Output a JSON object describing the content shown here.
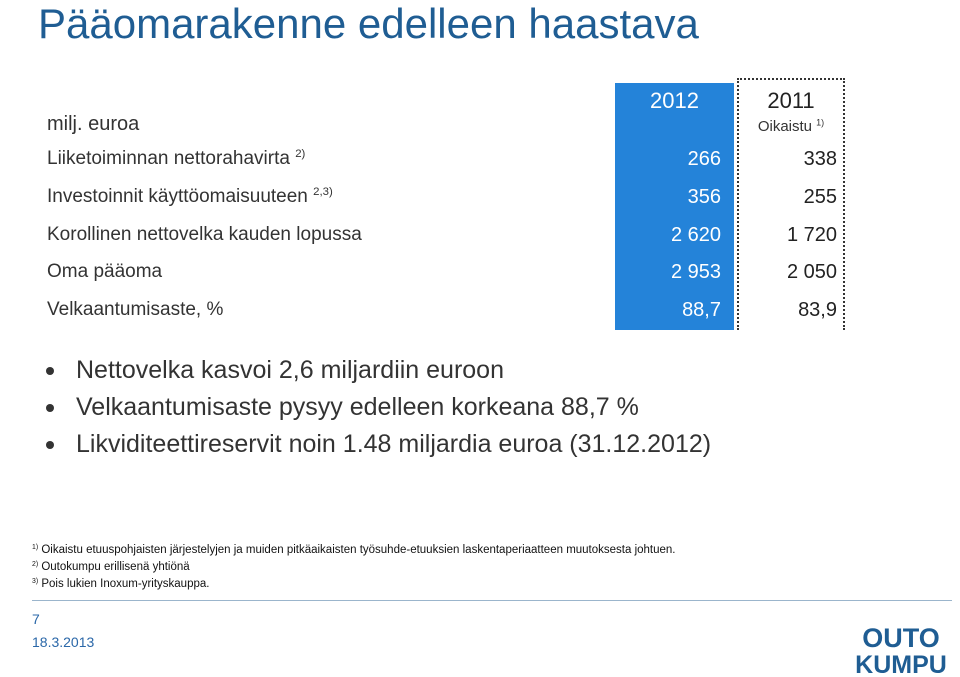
{
  "title": "Pääomarakenne edelleen haastava",
  "table": {
    "unit_label": "milj. euroa",
    "col_2012": "2012",
    "col_2011": "2011",
    "col_2011_note": "Oikaistu",
    "col_2011_note_sup": "1)",
    "rows": [
      {
        "label": "Liiketoiminnan nettorahavirta",
        "sup": "2)",
        "v2012": "266",
        "v2011": "338"
      },
      {
        "label": "Investoinnit käyttöomaisuuteen",
        "sup": "2,3)",
        "v2012": "356",
        "v2011": "255"
      },
      {
        "label": "Korollinen nettovelka kauden lopussa",
        "sup": "",
        "v2012": "2 620",
        "v2011": "1 720"
      },
      {
        "label": "Oma pääoma",
        "sup": "",
        "v2012": "2 953",
        "v2011": "2 050"
      },
      {
        "label": "Velkaantumisaste, %",
        "sup": "",
        "v2012": "88,7",
        "v2011": "83,9"
      }
    ]
  },
  "bullets": [
    "Nettovelka kasvoi 2,6 miljardiin euroon",
    "Velkaantumisaste pysyy edelleen korkeana 88,7 %",
    "Likviditeettireservit noin 1.48 miljardia euroa (31.12.2012)"
  ],
  "footnotes": [
    {
      "mark": "1)",
      "text": "Oikaistu etuuspohjaisten järjestelyjen ja muiden pitkäaikaisten työsuhde-etuuksien laskentaperiaatteen muutoksesta johtuen."
    },
    {
      "mark": "2)",
      "text": "Outokumpu erillisenä yhtiönä"
    },
    {
      "mark": "3)",
      "text": "Pois lukien Inoxum-yrityskauppa."
    }
  ],
  "footer": {
    "page_number": "7",
    "date": "18.3.2013",
    "logo_line1": "OUTO",
    "logo_line2": "KUMPU"
  },
  "colors": {
    "title": "#1f5d93",
    "highlight_column": "#2483d9",
    "logo": "#1f5d93"
  }
}
